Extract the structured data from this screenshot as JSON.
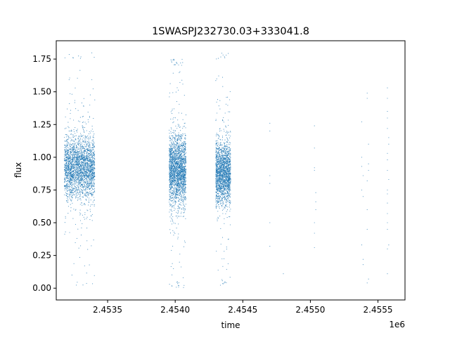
{
  "chart_data": {
    "type": "scatter",
    "title": "1SWASPJ232730.03+333041.8",
    "xlabel": "time",
    "ylabel": "flux",
    "x_offset_label": "1e6",
    "xlim": [
      2453120,
      2455700
    ],
    "ylim": [
      -0.09,
      1.89
    ],
    "x_ticks": [
      2453500,
      2454000,
      2454500,
      2455000,
      2455500
    ],
    "x_tick_labels": [
      "2.4535",
      "2.4540",
      "2.4545",
      "2.4550",
      "2.4555"
    ],
    "y_ticks": [
      0.0,
      0.25,
      0.5,
      0.75,
      1.0,
      1.25,
      1.5,
      1.75
    ],
    "y_tick_labels": [
      "0.00",
      "0.25",
      "0.50",
      "0.75",
      "1.00",
      "1.25",
      "1.50",
      "1.75"
    ],
    "grid": false,
    "marker_color": "#1f77b4",
    "clusters": [
      {
        "x_range": [
          2453180,
          2453405
        ],
        "center_flux": 0.92,
        "flux_spread": 0.22,
        "flux_range": [
          0.0,
          1.8
        ]
      },
      {
        "x_range": [
          2453955,
          2454080
        ],
        "center_flux": 0.9,
        "flux_spread": 0.24,
        "flux_range": [
          0.0,
          1.75
        ]
      },
      {
        "x_range": [
          2454300,
          2454410
        ],
        "center_flux": 0.88,
        "flux_spread": 0.22,
        "flux_range": [
          0.02,
          1.8
        ]
      }
    ],
    "sparse_points": [
      {
        "x": 2454700,
        "y": 1.26
      },
      {
        "x": 2454700,
        "y": 1.2
      },
      {
        "x": 2454700,
        "y": 0.86
      },
      {
        "x": 2454700,
        "y": 0.8
      },
      {
        "x": 2454700,
        "y": 0.5
      },
      {
        "x": 2454700,
        "y": 0.32
      },
      {
        "x": 2454800,
        "y": 0.11
      },
      {
        "x": 2455030,
        "y": 1.24
      },
      {
        "x": 2455030,
        "y": 1.07
      },
      {
        "x": 2455030,
        "y": 0.92
      },
      {
        "x": 2455030,
        "y": 0.9
      },
      {
        "x": 2455040,
        "y": 0.73
      },
      {
        "x": 2455040,
        "y": 0.66
      },
      {
        "x": 2455040,
        "y": 0.6
      },
      {
        "x": 2455030,
        "y": 0.5
      },
      {
        "x": 2455030,
        "y": 0.42
      },
      {
        "x": 2455030,
        "y": 0.31
      },
      {
        "x": 2455380,
        "y": 1.27
      },
      {
        "x": 2455380,
        "y": 1.0
      },
      {
        "x": 2455380,
        "y": 0.93
      },
      {
        "x": 2455390,
        "y": 0.86
      },
      {
        "x": 2455380,
        "y": 0.75
      },
      {
        "x": 2455390,
        "y": 0.7
      },
      {
        "x": 2455380,
        "y": 0.33
      },
      {
        "x": 2455390,
        "y": 0.22
      },
      {
        "x": 2455390,
        "y": 0.18
      },
      {
        "x": 2455420,
        "y": 1.49
      },
      {
        "x": 2455420,
        "y": 1.45
      },
      {
        "x": 2455430,
        "y": 1.1
      },
      {
        "x": 2455430,
        "y": 0.95
      },
      {
        "x": 2455430,
        "y": 0.9
      },
      {
        "x": 2455420,
        "y": 0.82
      },
      {
        "x": 2455420,
        "y": 0.6
      },
      {
        "x": 2455420,
        "y": 0.45
      },
      {
        "x": 2455430,
        "y": 0.07
      },
      {
        "x": 2455420,
        "y": 0.04
      },
      {
        "x": 2455570,
        "y": 1.53
      },
      {
        "x": 2455570,
        "y": 1.45
      },
      {
        "x": 2455570,
        "y": 1.35
      },
      {
        "x": 2455570,
        "y": 1.3
      },
      {
        "x": 2455570,
        "y": 1.22
      },
      {
        "x": 2455580,
        "y": 1.15
      },
      {
        "x": 2455580,
        "y": 1.1
      },
      {
        "x": 2455570,
        "y": 1.03
      },
      {
        "x": 2455570,
        "y": 0.98
      },
      {
        "x": 2455570,
        "y": 0.9
      },
      {
        "x": 2455580,
        "y": 0.83
      },
      {
        "x": 2455570,
        "y": 0.75
      },
      {
        "x": 2455570,
        "y": 0.72
      },
      {
        "x": 2455570,
        "y": 0.65
      },
      {
        "x": 2455570,
        "y": 0.57
      },
      {
        "x": 2455570,
        "y": 0.5
      },
      {
        "x": 2455570,
        "y": 0.45
      },
      {
        "x": 2455580,
        "y": 0.33
      },
      {
        "x": 2455570,
        "y": 0.3
      },
      {
        "x": 2455570,
        "y": 0.11
      }
    ]
  }
}
